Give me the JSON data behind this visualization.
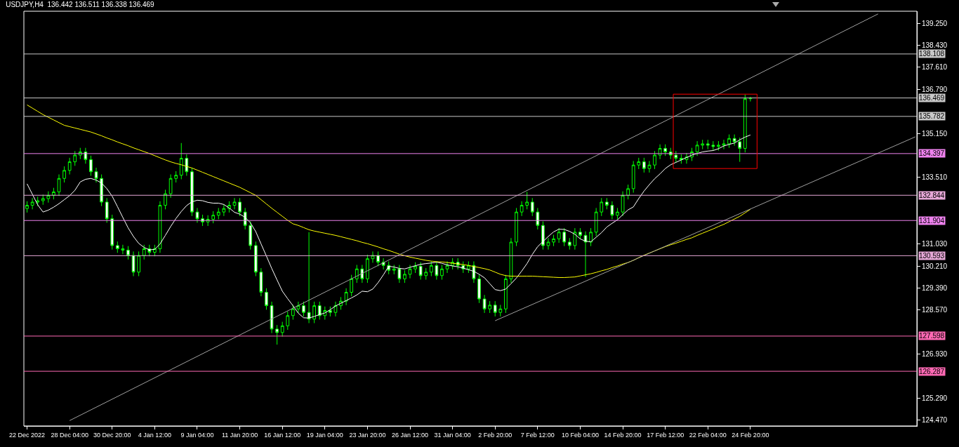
{
  "chart_data": {
    "type": "candlestick",
    "title": "USDJPY,H4  136.442 136.511 136.338 136.469",
    "color": "#00ff00",
    "categories": [
      "22 Dec 2022",
      null,
      null,
      null,
      null,
      null,
      null,
      null,
      "28 Dec 04:00",
      null,
      null,
      null,
      null,
      null,
      null,
      null,
      "30 Dec 20:00",
      null,
      null,
      null,
      null,
      null,
      null,
      null,
      "4 Jan 12:00",
      null,
      null,
      null,
      null,
      null,
      null,
      null,
      "9 Jan 04:00",
      null,
      null,
      null,
      null,
      null,
      null,
      null,
      "11 Jan 20:00",
      null,
      null,
      null,
      null,
      null,
      null,
      null,
      "16 Jan 12:00",
      null,
      null,
      null,
      null,
      null,
      null,
      null,
      "19 Jan 04:00",
      null,
      null,
      null,
      null,
      null,
      null,
      null,
      "23 Jan 20:00",
      null,
      null,
      null,
      null,
      null,
      null,
      null,
      "26 Jan 12:00",
      null,
      null,
      null,
      null,
      null,
      null,
      null,
      "31 Jan 04:00",
      null,
      null,
      null,
      null,
      null,
      null,
      null,
      "2 Feb 20:00",
      null,
      null,
      null,
      null,
      null,
      null,
      null,
      "7 Feb 12:00",
      null,
      null,
      null,
      null,
      null,
      null,
      null,
      "10 Feb 04:00",
      null,
      null,
      null,
      null,
      null,
      null,
      null,
      "14 Feb 20:00",
      null,
      null,
      null,
      null,
      null,
      null,
      null,
      "17 Feb 12:00",
      null,
      null,
      null,
      null,
      null,
      null,
      null,
      "22 Feb 04:00",
      null,
      null,
      null,
      null,
      null,
      null,
      null,
      "24 Feb 20:00",
      null,
      null,
      null,
      null,
      null,
      null,
      null,
      null,
      null,
      null,
      null,
      null,
      null,
      null,
      null,
      null,
      null,
      null,
      null,
      null,
      null,
      null,
      null,
      null,
      null,
      null,
      null,
      null,
      null,
      null,
      null
    ],
    "ylim": [
      124.25,
      139.7
    ],
    "yticks": [
      {
        "value": 139.25,
        "label": "139.250"
      },
      {
        "value": 138.43,
        "label": "138.430"
      },
      {
        "value": 137.61,
        "label": "137.610"
      },
      {
        "value": 136.79,
        "label": "136.790"
      },
      {
        "value": 135.15,
        "label": "135.150"
      },
      {
        "value": 133.51,
        "label": "133.510"
      },
      {
        "value": 131.03,
        "label": "131.030"
      },
      {
        "value": 130.21,
        "label": "130.210"
      },
      {
        "value": 129.39,
        "label": "129.390"
      },
      {
        "value": 128.57,
        "label": "128.570"
      },
      {
        "value": 126.93,
        "label": "126.930"
      },
      {
        "value": 125.29,
        "label": "125.290"
      },
      {
        "value": 124.47,
        "label": "124.470"
      }
    ],
    "ohlc": [
      [
        132.35,
        132.62,
        132.2,
        132.47
      ],
      [
        132.47,
        132.74,
        132.32,
        132.59
      ],
      [
        132.59,
        132.79,
        132.44,
        132.64
      ],
      [
        132.64,
        132.87,
        132.49,
        132.72
      ],
      [
        132.72,
        132.99,
        132.57,
        132.84
      ],
      [
        132.84,
        133.12,
        132.69,
        132.97
      ],
      [
        132.97,
        133.62,
        132.82,
        133.47
      ],
      [
        133.47,
        133.92,
        133.32,
        133.77
      ],
      [
        133.77,
        134.24,
        133.62,
        134.09
      ],
      [
        134.09,
        134.49,
        133.94,
        134.34
      ],
      [
        134.34,
        134.61,
        134.19,
        134.46
      ],
      [
        134.46,
        134.61,
        134.02,
        134.17
      ],
      [
        134.17,
        134.32,
        133.57,
        133.72
      ],
      [
        133.72,
        133.87,
        133.32,
        133.47
      ],
      [
        133.47,
        133.62,
        132.44,
        132.59
      ],
      [
        132.59,
        132.74,
        131.82,
        131.97
      ],
      [
        131.97,
        132.12,
        130.82,
        130.97
      ],
      [
        130.97,
        131.12,
        130.7,
        130.85
      ],
      [
        130.85,
        131.0,
        130.65,
        130.8
      ],
      [
        130.8,
        130.95,
        130.45,
        130.6
      ],
      [
        130.6,
        130.75,
        129.83,
        129.98
      ],
      [
        129.98,
        130.75,
        129.83,
        130.6
      ],
      [
        130.6,
        131.0,
        130.45,
        130.85
      ],
      [
        130.85,
        131.0,
        130.57,
        130.72
      ],
      [
        130.72,
        131.0,
        130.57,
        130.85
      ],
      [
        130.85,
        132.62,
        130.7,
        132.47
      ],
      [
        132.47,
        133.05,
        132.32,
        132.9
      ],
      [
        132.9,
        133.62,
        132.75,
        133.47
      ],
      [
        133.47,
        133.74,
        133.32,
        133.59
      ],
      [
        133.59,
        134.79,
        133.44,
        134.22
      ],
      [
        134.22,
        134.37,
        133.57,
        133.72
      ],
      [
        133.72,
        133.87,
        132.07,
        132.22
      ],
      [
        132.22,
        132.37,
        131.82,
        131.97
      ],
      [
        131.97,
        132.12,
        131.7,
        131.85
      ],
      [
        131.85,
        132.1,
        131.7,
        131.95
      ],
      [
        131.95,
        132.25,
        131.8,
        132.1
      ],
      [
        132.1,
        132.37,
        131.95,
        132.22
      ],
      [
        132.22,
        132.5,
        132.07,
        132.35
      ],
      [
        132.35,
        132.62,
        132.2,
        132.47
      ],
      [
        132.47,
        132.74,
        132.32,
        132.59
      ],
      [
        132.59,
        132.74,
        132.07,
        132.22
      ],
      [
        132.22,
        132.37,
        131.57,
        131.72
      ],
      [
        131.72,
        131.87,
        130.82,
        130.97
      ],
      [
        130.97,
        131.12,
        129.83,
        129.98
      ],
      [
        129.98,
        130.13,
        129.08,
        129.23
      ],
      [
        129.23,
        129.38,
        128.58,
        128.73
      ],
      [
        128.73,
        128.88,
        127.71,
        127.86
      ],
      [
        127.86,
        128.01,
        127.28,
        127.73
      ],
      [
        127.73,
        128.13,
        127.58,
        127.98
      ],
      [
        127.98,
        128.51,
        127.83,
        128.36
      ],
      [
        128.36,
        128.76,
        128.21,
        128.61
      ],
      [
        128.61,
        128.88,
        128.46,
        128.73
      ],
      [
        128.73,
        128.88,
        128.33,
        128.48
      ],
      [
        128.48,
        131.47,
        128.08,
        128.23
      ],
      [
        128.23,
        128.88,
        128.08,
        128.73
      ],
      [
        128.73,
        128.88,
        128.21,
        128.36
      ],
      [
        128.36,
        128.7,
        128.21,
        128.55
      ],
      [
        128.55,
        128.7,
        128.33,
        128.48
      ],
      [
        128.48,
        128.88,
        128.33,
        128.73
      ],
      [
        128.73,
        129.05,
        128.58,
        128.9
      ],
      [
        128.9,
        129.38,
        128.75,
        129.23
      ],
      [
        129.23,
        129.88,
        129.08,
        129.73
      ],
      [
        129.73,
        130.25,
        129.58,
        130.1
      ],
      [
        130.1,
        130.25,
        129.58,
        129.73
      ],
      [
        129.73,
        130.63,
        129.58,
        130.48
      ],
      [
        130.48,
        130.75,
        130.33,
        130.6
      ],
      [
        130.6,
        130.75,
        130.2,
        130.35
      ],
      [
        130.35,
        130.5,
        130.08,
        130.23
      ],
      [
        130.23,
        130.38,
        129.9,
        130.05
      ],
      [
        130.05,
        130.25,
        129.9,
        130.1
      ],
      [
        130.1,
        130.25,
        129.58,
        129.73
      ],
      [
        129.73,
        130.05,
        129.58,
        129.9
      ],
      [
        129.9,
        130.25,
        129.75,
        130.1
      ],
      [
        130.1,
        130.35,
        129.95,
        130.2
      ],
      [
        130.2,
        130.35,
        129.7,
        129.85
      ],
      [
        129.85,
        130.13,
        129.7,
        129.98
      ],
      [
        129.98,
        130.38,
        129.83,
        130.23
      ],
      [
        130.23,
        130.38,
        129.7,
        129.85
      ],
      [
        129.85,
        130.25,
        129.7,
        130.1
      ],
      [
        130.1,
        130.38,
        129.95,
        130.23
      ],
      [
        130.23,
        130.5,
        130.08,
        130.35
      ],
      [
        130.35,
        130.5,
        130.08,
        130.23
      ],
      [
        130.23,
        130.38,
        129.95,
        130.1
      ],
      [
        130.1,
        130.38,
        129.95,
        130.23
      ],
      [
        130.23,
        130.38,
        129.58,
        129.73
      ],
      [
        129.73,
        129.88,
        128.83,
        128.98
      ],
      [
        128.98,
        129.13,
        128.46,
        128.61
      ],
      [
        128.61,
        128.9,
        128.46,
        128.75
      ],
      [
        128.75,
        128.9,
        128.33,
        128.48
      ],
      [
        128.48,
        128.76,
        128.33,
        128.61
      ],
      [
        128.61,
        129.88,
        128.46,
        129.73
      ],
      [
        129.73,
        131.25,
        129.58,
        131.1
      ],
      [
        131.1,
        132.37,
        130.95,
        132.22
      ],
      [
        132.22,
        132.62,
        132.07,
        132.47
      ],
      [
        132.47,
        132.97,
        132.32,
        132.59
      ],
      [
        132.59,
        132.74,
        132.07,
        132.22
      ],
      [
        132.22,
        132.37,
        131.57,
        131.72
      ],
      [
        131.72,
        131.87,
        130.82,
        130.97
      ],
      [
        130.97,
        131.25,
        130.82,
        131.1
      ],
      [
        131.1,
        131.37,
        130.95,
        131.22
      ],
      [
        131.22,
        131.62,
        131.07,
        131.47
      ],
      [
        131.47,
        131.62,
        130.95,
        131.1
      ],
      [
        131.1,
        131.25,
        130.82,
        130.97
      ],
      [
        130.97,
        131.62,
        130.82,
        131.47
      ],
      [
        131.47,
        131.62,
        131.2,
        131.35
      ],
      [
        131.35,
        131.5,
        129.8,
        131.1
      ],
      [
        131.1,
        131.62,
        130.95,
        131.47
      ],
      [
        131.47,
        132.37,
        131.32,
        132.22
      ],
      [
        132.22,
        132.74,
        132.07,
        132.59
      ],
      [
        132.59,
        132.74,
        132.32,
        132.47
      ],
      [
        132.47,
        132.62,
        131.95,
        132.1
      ],
      [
        132.1,
        132.37,
        131.95,
        132.22
      ],
      [
        132.22,
        132.99,
        132.07,
        132.84
      ],
      [
        132.84,
        133.24,
        132.69,
        133.09
      ],
      [
        133.09,
        134.12,
        132.94,
        133.97
      ],
      [
        133.97,
        134.24,
        133.82,
        134.09
      ],
      [
        134.09,
        134.24,
        133.69,
        133.84
      ],
      [
        133.84,
        134.12,
        133.69,
        133.97
      ],
      [
        133.97,
        134.49,
        133.82,
        134.34
      ],
      [
        134.34,
        134.74,
        134.19,
        134.59
      ],
      [
        134.59,
        134.74,
        134.31,
        134.46
      ],
      [
        134.46,
        134.61,
        134.19,
        134.34
      ],
      [
        134.34,
        134.49,
        134.07,
        134.22
      ],
      [
        134.22,
        134.37,
        134.02,
        134.17
      ],
      [
        134.17,
        134.42,
        134.02,
        134.27
      ],
      [
        134.27,
        134.61,
        134.12,
        134.46
      ],
      [
        134.46,
        134.86,
        134.31,
        134.71
      ],
      [
        134.71,
        134.91,
        134.56,
        134.76
      ],
      [
        134.76,
        134.91,
        134.56,
        134.71
      ],
      [
        134.71,
        134.86,
        134.51,
        134.66
      ],
      [
        134.66,
        134.86,
        134.51,
        134.71
      ],
      [
        134.71,
        134.91,
        134.56,
        134.76
      ],
      [
        134.76,
        135.11,
        134.61,
        134.96
      ],
      [
        134.96,
        135.11,
        134.69,
        134.84
      ],
      [
        134.84,
        134.99,
        134.09,
        134.59
      ],
      [
        134.59,
        136.59,
        134.44,
        136.44
      ],
      [
        136.442,
        136.511,
        136.338,
        136.469
      ],
      null,
      null,
      null,
      null,
      null,
      null,
      null,
      null,
      null,
      null,
      null,
      null,
      null,
      null,
      null,
      null,
      null,
      null,
      null,
      null,
      null,
      null,
      null,
      null,
      null,
      null,
      null,
      null,
      null,
      null,
      null
    ],
    "series": [
      {
        "type": "line",
        "color": "#ffffff",
        "values": [
          133.27,
          132.88,
          132.49,
          132.22,
          132.29,
          132.4,
          132.53,
          132.68,
          132.83,
          133.03,
          133.34,
          133.44,
          133.47,
          133.41,
          133.3,
          133.09,
          132.81,
          132.42,
          132.02,
          131.63,
          131.31,
          131.05,
          130.9,
          130.81,
          130.83,
          131.03,
          131.35,
          131.68,
          131.98,
          132.24,
          132.46,
          132.6,
          132.66,
          132.64,
          132.58,
          132.55,
          132.55,
          132.5,
          132.37,
          132.21,
          132.14,
          132.02,
          131.82,
          131.49,
          131.03,
          130.58,
          130.12,
          129.69,
          129.27,
          128.99,
          128.73,
          128.45,
          128.28,
          128.27,
          128.33,
          128.4,
          128.46,
          128.58,
          128.72,
          128.82,
          128.92,
          129.02,
          129.13,
          129.27,
          129.25,
          129.35,
          129.59,
          129.88,
          130.2,
          130.17,
          130.12,
          130.1,
          130.16,
          130.22,
          130.27,
          130.3,
          130.32,
          130.35,
          130.31,
          130.25,
          130.21,
          130.18,
          130.13,
          130.07,
          130.01,
          129.9,
          129.77,
          129.55,
          129.33,
          129.29,
          129.35,
          129.55,
          129.76,
          130.02,
          130.3,
          130.64,
          130.93,
          131.12,
          131.31,
          131.48,
          131.58,
          131.57,
          131.5,
          131.39,
          131.22,
          131.13,
          131.11,
          131.28,
          131.45,
          131.66,
          131.8,
          131.93,
          132.12,
          132.3,
          132.41,
          132.72,
          133.0,
          133.24,
          133.46,
          133.64,
          133.84,
          133.98,
          134.07,
          134.16,
          134.25,
          134.34,
          134.4,
          134.46,
          134.49,
          134.51,
          134.58,
          134.68,
          134.74,
          134.79,
          134.91,
          135.01,
          135.09,
          null,
          null,
          null,
          null,
          null,
          null,
          null,
          null,
          null,
          null,
          null,
          null,
          null,
          null,
          null,
          null,
          null,
          null,
          null,
          null,
          null,
          null,
          null,
          null,
          null,
          null,
          null,
          null,
          null,
          null,
          null
        ]
      },
      {
        "type": "line",
        "color": "#ffff00",
        "values": [
          136.21,
          136.09,
          135.97,
          135.85,
          135.75,
          135.65,
          135.55,
          135.45,
          135.4,
          135.35,
          135.3,
          135.25,
          135.2,
          135.13,
          135.06,
          134.98,
          134.91,
          134.83,
          134.76,
          134.69,
          134.61,
          134.54,
          134.47,
          134.4,
          134.32,
          134.24,
          134.16,
          134.09,
          134.03,
          133.98,
          133.92,
          133.86,
          133.78,
          133.7,
          133.62,
          133.54,
          133.46,
          133.38,
          133.3,
          133.22,
          133.14,
          133.04,
          132.94,
          132.84,
          132.68,
          132.52,
          132.36,
          132.21,
          132.06,
          131.91,
          131.78,
          131.72,
          131.64,
          131.56,
          131.51,
          131.47,
          131.43,
          131.39,
          131.35,
          131.3,
          131.25,
          131.2,
          131.15,
          131.09,
          131.04,
          130.98,
          130.92,
          130.85,
          130.79,
          130.72,
          130.65,
          130.59,
          130.54,
          130.5,
          130.46,
          130.42,
          130.39,
          130.37,
          130.36,
          130.34,
          130.31,
          130.29,
          130.26,
          130.23,
          130.19,
          130.15,
          130.11,
          130.06,
          129.98,
          129.9,
          129.85,
          129.83,
          129.83,
          129.83,
          129.83,
          129.83,
          129.82,
          129.81,
          129.8,
          129.79,
          129.78,
          129.78,
          129.79,
          129.8,
          129.84,
          129.88,
          129.92,
          129.97,
          130.03,
          130.08,
          130.15,
          130.21,
          130.28,
          130.34,
          130.42,
          130.52,
          130.61,
          130.69,
          130.77,
          130.85,
          130.93,
          131.0,
          131.06,
          131.13,
          131.2,
          131.26,
          131.35,
          131.43,
          131.51,
          131.59,
          131.68,
          131.76,
          131.86,
          131.96,
          132.06,
          132.19,
          132.32,
          null,
          null,
          null,
          null,
          null,
          null,
          null,
          null,
          null,
          null,
          null,
          null,
          null,
          null,
          null,
          null,
          null,
          null,
          null,
          null,
          null,
          null,
          null,
          null,
          null,
          null,
          null,
          null,
          null,
          null,
          null
        ]
      },
      {
        "type": "line",
        "color": "#a0a0a0",
        "values": [
          null,
          null,
          null,
          null,
          null,
          null,
          null,
          null,
          124.45,
          null,
          null,
          null,
          null,
          null,
          null,
          null,
          null,
          null,
          null,
          null,
          null,
          null,
          null,
          null,
          null,
          null,
          null,
          null,
          null,
          null,
          null,
          null,
          null,
          null,
          null,
          null,
          null,
          null,
          null,
          null,
          null,
          null,
          null,
          null,
          null,
          null,
          null,
          null,
          null,
          null,
          null,
          null,
          null,
          null,
          null,
          null,
          null,
          null,
          null,
          null,
          null,
          null,
          null,
          null,
          null,
          null,
          null,
          null,
          null,
          null,
          null,
          null,
          null,
          null,
          null,
          null,
          null,
          null,
          null,
          null,
          null,
          null,
          null,
          null,
          null,
          null,
          null,
          null,
          null,
          null,
          null,
          null,
          null,
          null,
          null,
          null,
          null,
          null,
          null,
          null,
          null,
          null,
          null,
          null,
          null,
          null,
          null,
          null,
          null,
          null,
          null,
          null,
          null,
          null,
          null,
          null,
          null,
          null,
          null,
          null,
          null,
          null,
          null,
          null,
          null,
          null,
          null,
          null,
          null,
          null,
          null,
          null,
          null,
          null,
          null,
          null,
          null,
          null,
          null,
          null,
          null,
          null,
          null,
          null,
          null,
          null,
          null,
          null,
          null,
          null,
          null,
          null,
          null,
          null,
          null,
          null,
          null,
          null,
          null,
          null,
          139.6,
          null,
          null,
          null,
          null,
          null,
          null,
          null
        ]
      },
      {
        "type": "line",
        "color": "#a0a0a0",
        "values": [
          null,
          null,
          null,
          null,
          null,
          null,
          null,
          null,
          null,
          null,
          null,
          null,
          null,
          null,
          null,
          null,
          null,
          null,
          null,
          null,
          null,
          null,
          null,
          null,
          null,
          null,
          null,
          null,
          null,
          null,
          null,
          null,
          null,
          null,
          null,
          null,
          null,
          null,
          null,
          null,
          null,
          null,
          null,
          null,
          null,
          null,
          null,
          null,
          null,
          null,
          null,
          null,
          null,
          null,
          null,
          null,
          null,
          null,
          null,
          null,
          null,
          null,
          null,
          null,
          null,
          null,
          null,
          null,
          null,
          null,
          null,
          null,
          null,
          null,
          null,
          null,
          null,
          null,
          null,
          null,
          null,
          null,
          null,
          null,
          null,
          null,
          null,
          null,
          128.17,
          null,
          null,
          null,
          null,
          null,
          null,
          null,
          null,
          null,
          null,
          null,
          null,
          null,
          null,
          null,
          null,
          null,
          null,
          null,
          null,
          null,
          null,
          null,
          null,
          null,
          null,
          null,
          null,
          null,
          null,
          null,
          null,
          null,
          null,
          null,
          null,
          null,
          null,
          null,
          null,
          null,
          null,
          null,
          null,
          null,
          null,
          null,
          null,
          null,
          null,
          null,
          null,
          null,
          null,
          null,
          null,
          null,
          null,
          null,
          null,
          null,
          null,
          null,
          null,
          null,
          null,
          null,
          null,
          null,
          null,
          null,
          null,
          null,
          null,
          null,
          null,
          null,
          null,
          135.02
        ]
      }
    ],
    "ref_lines": [
      {
        "axis": "y",
        "value": 138.108,
        "label": "138.108",
        "color": "#c8c8c8"
      },
      {
        "axis": "y",
        "value": 136.469,
        "label": "136.469",
        "color": "#c8c8c8"
      },
      {
        "axis": "y",
        "value": 135.782,
        "label": "135.782",
        "color": "#c8c8c8"
      },
      {
        "axis": "y",
        "value": 134.397,
        "label": "134.397",
        "color": "#ee82ee"
      },
      {
        "axis": "y",
        "value": 132.844,
        "label": "132.844",
        "color": "#e6a8d7"
      },
      {
        "axis": "y",
        "value": 131.904,
        "label": "131.904",
        "color": "#ee82ee"
      },
      {
        "axis": "y",
        "value": 130.593,
        "label": "130.593",
        "color": "#e6a8d7"
      },
      {
        "axis": "y",
        "value": 127.598,
        "label": "127.598",
        "color": "#ff69b4"
      },
      {
        "axis": "y",
        "value": 126.287,
        "label": "126.287",
        "color": "#ff69b4"
      }
    ]
  }
}
